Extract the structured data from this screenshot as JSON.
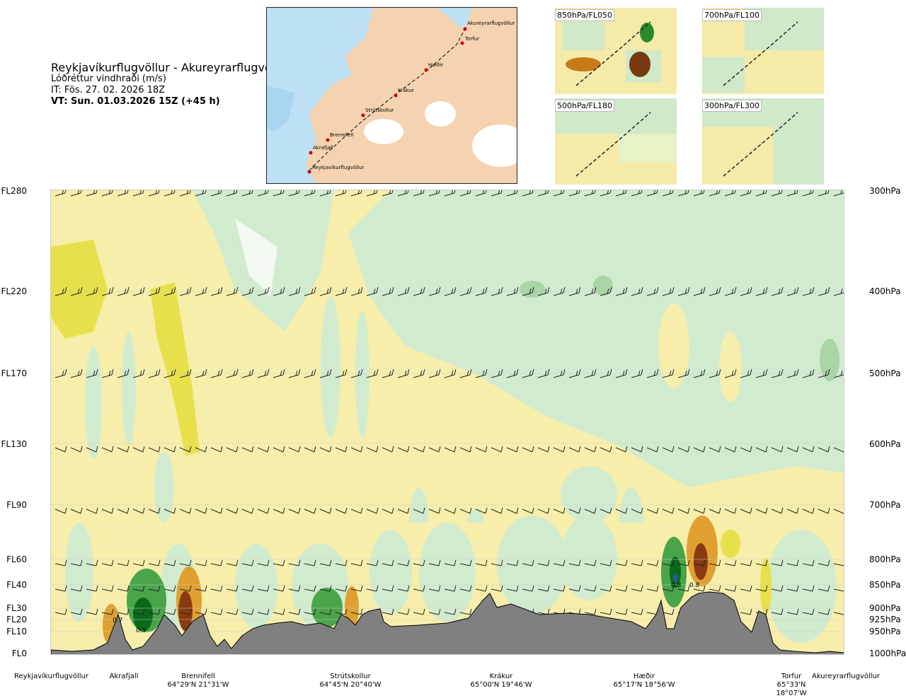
{
  "title": {
    "route": "Reykjavíkurflugvöllur - Akureyrarflugvöllur",
    "variable": "Lóðréttur vindhraði (m/s)",
    "issue_time": "IT: Fös. 27. 02. 2026 18Z",
    "valid_time": "VT: Sun. 01.03.2026 15Z (+45 h)"
  },
  "map": {
    "stations": [
      "Akureyrarflugvöllur",
      "Torfur",
      "Hæðir",
      "Krákur",
      "Strútskollur",
      "Brennifell",
      "Akrafjall",
      "Reykjavíkurflugvöllur"
    ]
  },
  "mini_maps": [
    {
      "label": "850hPa/FL050"
    },
    {
      "label": "700hPa/FL100"
    },
    {
      "label": "500hPa/FL180"
    },
    {
      "label": "300hPa/FL300"
    }
  ],
  "flight_levels": [
    "FL280",
    "FL220",
    "FL170",
    "FL130",
    "FL90",
    "FL60",
    "FL40",
    "FL30",
    "FL20",
    "FL10",
    "FL0"
  ],
  "pressure_levels": [
    "300hPa",
    "400hPa",
    "500hPa",
    "600hPa",
    "700hPa",
    "800hPa",
    "850hPa",
    "900hPa",
    "925hPa",
    "950hPa",
    "1000hPa"
  ],
  "cross_section": {
    "annotations": [
      "0.7",
      "0.5",
      "0.8",
      "0.8"
    ]
  },
  "locations": [
    {
      "name": "Reykjavíkurflugvöllur",
      "coord": ""
    },
    {
      "name": "Akrafjall",
      "coord": ""
    },
    {
      "name": "Brennifell",
      "coord": "64°29'N 21°31'W"
    },
    {
      "name": "Strútskollur",
      "coord": "64°45'N 20°40'W"
    },
    {
      "name": "Krákur",
      "coord": "65°00'N 19°46'W"
    },
    {
      "name": "Hæðir",
      "coord": "65°17'N 18°56'W"
    },
    {
      "name": "Torfur",
      "coord": "65°33'N 18°07'W"
    },
    {
      "name": "Akureyrarflugvöllur",
      "coord": ""
    }
  ],
  "colors": {
    "terrain": "#808080",
    "positive_yellow": "#f2e98c",
    "positive_orange": "#e0a030",
    "positive_brown": "#8a3a10",
    "negative_green_light": "#cdebcd",
    "negative_green": "#3a9a3a",
    "negative_green_dark": "#0a6a1a",
    "water": "#bde0f5",
    "land": "#f5cfa8"
  }
}
